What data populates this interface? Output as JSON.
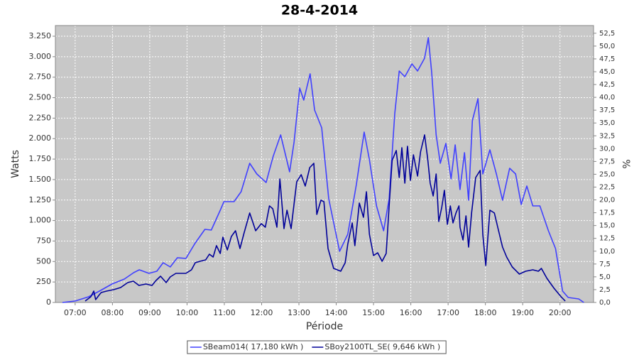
{
  "chart_data": {
    "type": "line",
    "title": "28-4-2014",
    "x_label": "Période",
    "y_label": "Watts",
    "y2_label": "%",
    "xlim": [
      6.47,
      20.9
    ],
    "xticks": [
      {
        "value": 7,
        "label": "07:00"
      },
      {
        "value": 8,
        "label": "08:00"
      },
      {
        "value": 9,
        "label": "09:00"
      },
      {
        "value": 10,
        "label": "10:00"
      },
      {
        "value": 11,
        "label": "11:00"
      },
      {
        "value": 12,
        "label": "12:00"
      },
      {
        "value": 13,
        "label": "13:00"
      },
      {
        "value": 14,
        "label": "14:00"
      },
      {
        "value": 15,
        "label": "15:00"
      },
      {
        "value": 16,
        "label": "16:00"
      },
      {
        "value": 17,
        "label": "17:00"
      },
      {
        "value": 18,
        "label": "18:00"
      },
      {
        "value": 19,
        "label": "19:00"
      },
      {
        "value": 20,
        "label": "20:00"
      }
    ],
    "ylim": [
      0,
      3380
    ],
    "yticks": [
      0,
      250,
      500,
      750,
      {
        "value": 1000,
        "label": "1.000"
      },
      {
        "value": 1250,
        "label": "1.250"
      },
      {
        "value": 1500,
        "label": "1.500"
      },
      {
        "value": 1750,
        "label": "1.750"
      },
      {
        "value": 2000,
        "label": "2.000"
      },
      {
        "value": 2250,
        "label": "2.250"
      },
      {
        "value": 2500,
        "label": "2.500"
      },
      {
        "value": 2750,
        "label": "2.750"
      },
      {
        "value": 3000,
        "label": "3.000"
      },
      {
        "value": 3250,
        "label": "3.250"
      }
    ],
    "y2lim": [
      0,
      54
    ],
    "y2ticks": [
      {
        "value": 0,
        "label": "0,0"
      },
      {
        "value": 2.5,
        "label": "2,5"
      },
      {
        "value": 5,
        "label": "5,0"
      },
      {
        "value": 7.5,
        "label": "7,5"
      },
      {
        "value": 10,
        "label": "10,0"
      },
      {
        "value": 12.5,
        "label": "12,5"
      },
      {
        "value": 15,
        "label": "15,0"
      },
      {
        "value": 17.5,
        "label": "17,5"
      },
      {
        "value": 20,
        "label": "20,0"
      },
      {
        "value": 22.5,
        "label": "22,5"
      },
      {
        "value": 25,
        "label": "25,0"
      },
      {
        "value": 27.5,
        "label": "27,5"
      },
      {
        "value": 30,
        "label": "30,0"
      },
      {
        "value": 32.5,
        "label": "32,5"
      },
      {
        "value": 35,
        "label": "35,0"
      },
      {
        "value": 37.5,
        "label": "37,5"
      },
      {
        "value": 40,
        "label": "40,0"
      },
      {
        "value": 42.5,
        "label": "42,5"
      },
      {
        "value": 45,
        "label": "45,0"
      },
      {
        "value": 47.5,
        "label": "47,5"
      },
      {
        "value": 50,
        "label": "50,0"
      },
      {
        "value": 52.5,
        "label": "52,5"
      }
    ],
    "grid": true,
    "legend": "bottom",
    "series": [
      {
        "name": "SBeam014( 17,180 kWh )",
        "color": "#4040ff",
        "x": [
          6.66,
          7.0,
          7.36,
          7.65,
          7.99,
          8.32,
          8.57,
          8.72,
          8.98,
          9.19,
          9.36,
          9.55,
          9.74,
          9.97,
          10.21,
          10.48,
          10.65,
          10.9,
          10.99,
          11.26,
          11.45,
          11.68,
          11.87,
          12.12,
          12.31,
          12.51,
          12.75,
          12.87,
          13.02,
          13.13,
          13.3,
          13.42,
          13.61,
          13.8,
          14.09,
          14.31,
          14.54,
          14.75,
          14.89,
          15.08,
          15.27,
          15.42,
          15.57,
          15.69,
          15.84,
          16.03,
          16.18,
          16.37,
          16.47,
          16.56,
          16.68,
          16.79,
          16.94,
          17.08,
          17.19,
          17.32,
          17.44,
          17.55,
          17.65,
          17.8,
          17.93,
          18.12,
          18.3,
          18.46,
          18.65,
          18.81,
          18.96,
          19.11,
          19.27,
          19.46,
          19.69,
          19.88,
          20.07,
          20.22,
          20.5,
          20.64
        ],
        "values": [
          0,
          17,
          69,
          139,
          225,
          286,
          364,
          399,
          355,
          381,
          485,
          433,
          546,
          537,
          719,
          893,
          884,
          1135,
          1231,
          1231,
          1352,
          1699,
          1569,
          1465,
          1785,
          2045,
          1595,
          1959,
          2617,
          2470,
          2791,
          2349,
          2132,
          1265,
          624,
          832,
          1439,
          2080,
          1742,
          1179,
          875,
          1265,
          2305,
          2825,
          2756,
          2912,
          2825,
          2981,
          3233,
          2808,
          2045,
          1699,
          1941,
          1508,
          1924,
          1378,
          1829,
          1248,
          2219,
          2487,
          1569,
          1863,
          1560,
          1248,
          1638,
          1569,
          1196,
          1421,
          1179,
          1179,
          875,
          659,
          139,
          61,
          43,
          0
        ]
      },
      {
        "name": "SBoy2100TL_SE( 9,646 kWh )",
        "color": "#000099",
        "x": [
          7.27,
          7.42,
          7.5,
          7.55,
          7.65,
          7.7,
          7.84,
          8.03,
          8.22,
          8.41,
          8.56,
          8.71,
          8.9,
          9.06,
          9.17,
          9.29,
          9.44,
          9.55,
          9.7,
          9.97,
          10.12,
          10.22,
          10.35,
          10.5,
          10.6,
          10.7,
          10.79,
          10.89,
          10.96,
          11.08,
          11.19,
          11.3,
          11.42,
          11.53,
          11.68,
          11.84,
          11.99,
          12.1,
          12.21,
          12.3,
          12.41,
          12.49,
          12.6,
          12.68,
          12.79,
          12.94,
          13.06,
          13.17,
          13.29,
          13.4,
          13.48,
          13.59,
          13.67,
          13.78,
          13.93,
          14.12,
          14.24,
          14.31,
          14.43,
          14.5,
          14.62,
          14.73,
          14.81,
          14.89,
          15.0,
          15.11,
          15.23,
          15.34,
          15.42,
          15.5,
          15.61,
          15.69,
          15.76,
          15.84,
          15.91,
          15.99,
          16.07,
          16.18,
          16.26,
          16.37,
          16.45,
          16.52,
          16.6,
          16.68,
          16.75,
          16.83,
          16.9,
          16.98,
          17.06,
          17.13,
          17.21,
          17.29,
          17.32,
          17.4,
          17.48,
          17.55,
          17.63,
          17.74,
          17.86,
          17.93,
          18.01,
          18.12,
          18.24,
          18.34,
          18.46,
          18.57,
          18.72,
          18.91,
          19.08,
          19.27,
          19.42,
          19.5,
          19.65,
          19.84,
          20.03,
          20.14
        ],
        "values": [
          17,
          69,
          139,
          35,
          95,
          121,
          139,
          156,
          182,
          243,
          260,
          208,
          225,
          208,
          269,
          321,
          243,
          312,
          355,
          355,
          399,
          485,
          503,
          520,
          589,
          555,
          693,
          598,
          797,
          641,
          806,
          875,
          659,
          849,
          1092,
          875,
          962,
          919,
          1179,
          1144,
          919,
          1508,
          901,
          1127,
          901,
          1473,
          1560,
          1421,
          1647,
          1699,
          1075,
          1248,
          1231,
          659,
          416,
          381,
          485,
          711,
          971,
          693,
          1213,
          1040,
          1352,
          832,
          572,
          607,
          503,
          598,
          1179,
          1733,
          1855,
          1525,
          1889,
          1456,
          1907,
          1491,
          1803,
          1543,
          1837,
          2045,
          1768,
          1456,
          1300,
          1569,
          988,
          1161,
          1369,
          953,
          1179,
          971,
          1092,
          1179,
          919,
          763,
          1057,
          676,
          1092,
          1525,
          1612,
          832,
          451,
          1127,
          1092,
          901,
          676,
          555,
          433,
          347,
          381,
          399,
          381,
          416,
          295,
          173,
          69,
          17
        ]
      }
    ]
  }
}
